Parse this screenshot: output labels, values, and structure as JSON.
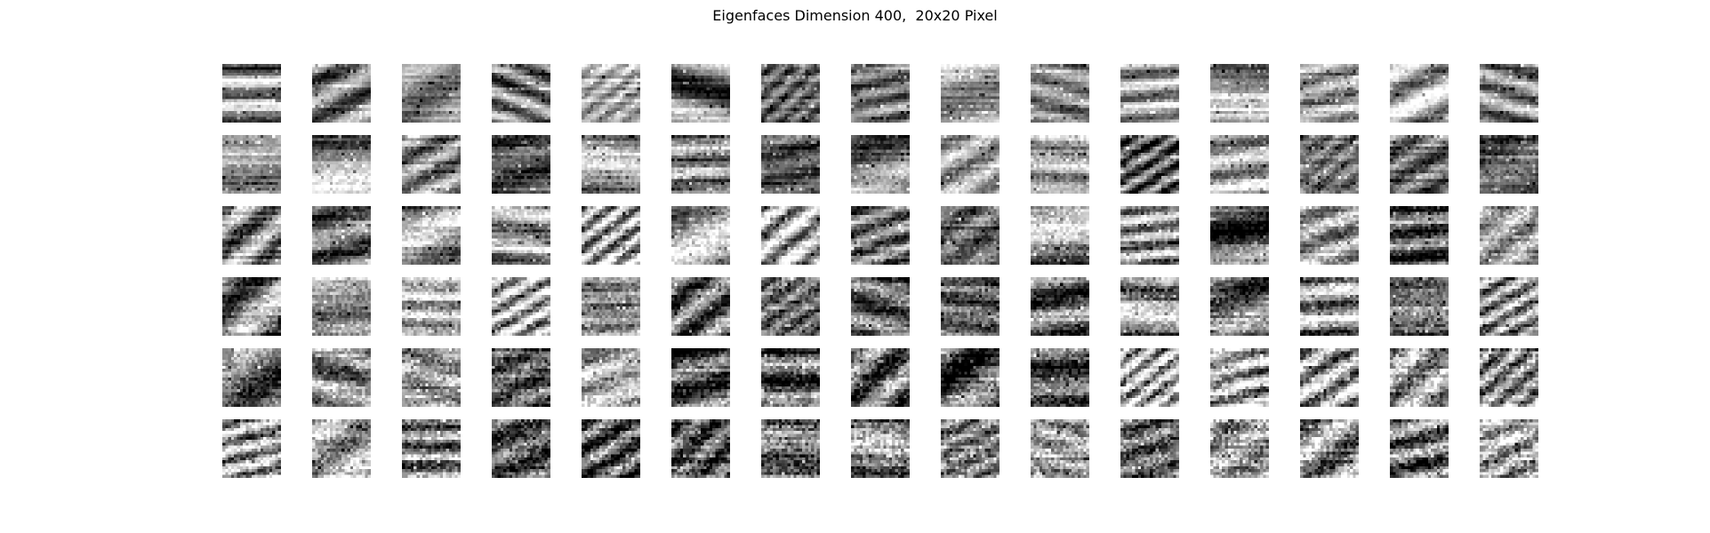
{
  "figure": {
    "title": "Eigenfaces Dimension 400,  20x20 Pixel"
  },
  "grid": {
    "rows": 6,
    "cols": 15,
    "tile_pixels": 20,
    "tile_count": 90,
    "colormap": "grayscale"
  }
}
